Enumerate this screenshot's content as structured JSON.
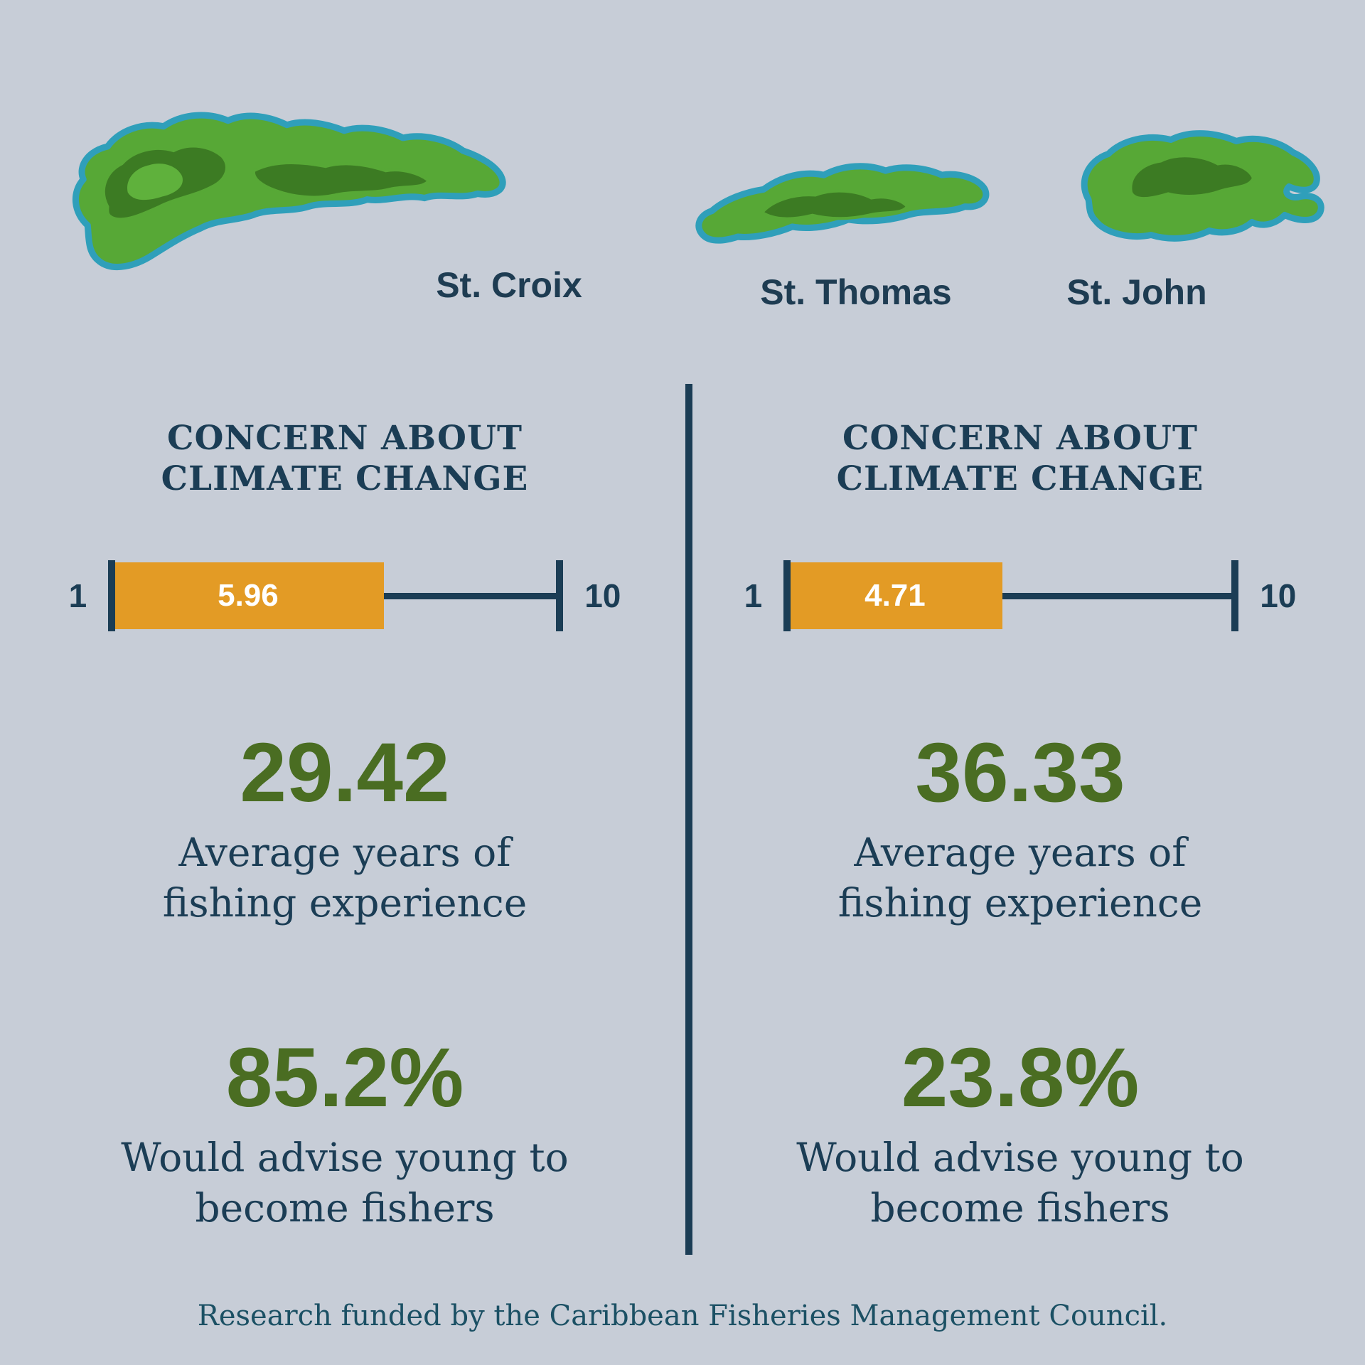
{
  "background": "#c7cdd7",
  "colors": {
    "navy": "#1b3d55",
    "green_number": "#4a6d22",
    "orange": "#e39b25",
    "island_green": "#57a836",
    "island_dark_green": "#3c7b23",
    "island_light_green": "#5fb13c",
    "island_outline_teal": "#2f9fba",
    "white": "#ffffff"
  },
  "islands": [
    {
      "label": "St. Croix"
    },
    {
      "label": "St. Thomas"
    },
    {
      "label": "St. John"
    }
  ],
  "columns": [
    {
      "title_line1": "CONCERN ABOUT",
      "title_line2": "CLIMATE CHANGE",
      "scale_min": "1",
      "scale_max": "10",
      "concern_value": "5.96",
      "experience_value": "29.42",
      "experience_label_line1": "Average years of",
      "experience_label_line2": "fishing experience",
      "advise_value": "85.2%",
      "advise_label_line1": "Would advise young to",
      "advise_label_line2": "become fishers"
    },
    {
      "title_line1": "CONCERN ABOUT",
      "title_line2": "CLIMATE CHANGE",
      "scale_min": "1",
      "scale_max": "10",
      "concern_value": "4.71",
      "experience_value": "36.33",
      "experience_label_line1": "Average years of",
      "experience_label_line2": "fishing experience",
      "advise_value": "23.8%",
      "advise_label_line1": "Would advise young to",
      "advise_label_line2": "become fishers"
    }
  ],
  "footer": "Research funded by the Caribbean Fisheries Management Council.",
  "chart_data": {
    "type": "bar",
    "title": "Concern about climate change (scale 1-10) by island group",
    "scale": {
      "min": 1,
      "max": 10
    },
    "groups": [
      {
        "island": "St. Croix",
        "concern_about_climate_change": 5.96,
        "avg_years_fishing_experience": 29.42,
        "pct_would_advise_young_to_become_fishers": 85.2
      },
      {
        "island": "St. Thomas / St. John",
        "concern_about_climate_change": 4.71,
        "avg_years_fishing_experience": 36.33,
        "pct_would_advise_young_to_become_fishers": 23.8
      }
    ]
  }
}
